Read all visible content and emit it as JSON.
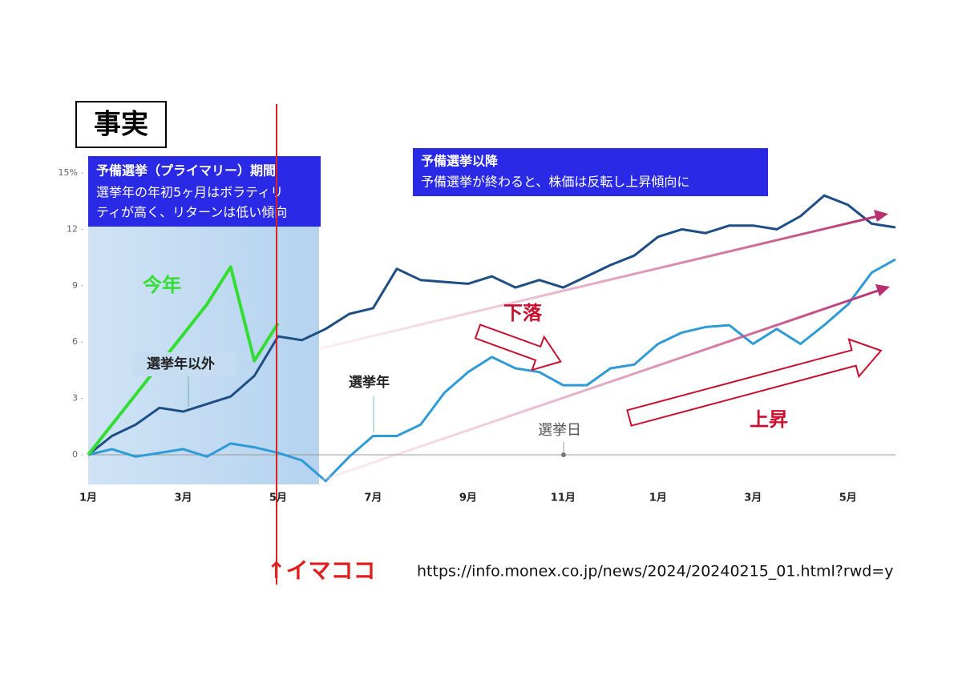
{
  "chart_data": {
    "type": "line",
    "badge": "事実",
    "box_primary": {
      "title": "予備選挙（プライマリー）期間",
      "lines": [
        "選挙年の年初5ヶ月はボラティリ",
        "ティが高く、リターンは低い傾向"
      ]
    },
    "box_after": {
      "title": "予備選挙以降",
      "lines": [
        "予備選挙が終わると、株価は反転し上昇傾向に"
      ]
    },
    "annotations": {
      "election_day": "選挙日",
      "fall": "下落",
      "rise": "上昇",
      "now": "↑イマココ",
      "source": "https://info.monex.co.jp/news/2024/20240215_01.html?rwd=y"
    },
    "categories": [
      "1月",
      null,
      null,
      null,
      "3月",
      null,
      null,
      null,
      "5月",
      null,
      null,
      null,
      "7月",
      null,
      null,
      null,
      "9月",
      null,
      null,
      null,
      "11月",
      null,
      null,
      null,
      "1月",
      null,
      null,
      null,
      "3月",
      null,
      null,
      null,
      "5月",
      null,
      null
    ],
    "series": [
      {
        "name": "選挙年以外",
        "color": "#1f4e85",
        "values": [
          0,
          1.0,
          1.6,
          2.5,
          2.3,
          2.7,
          3.1,
          4.2,
          6.3,
          6.1,
          6.7,
          7.5,
          7.8,
          9.9,
          9.3,
          9.2,
          9.1,
          9.5,
          8.9,
          9.3,
          8.9,
          9.5,
          10.1,
          10.6,
          11.6,
          12.0,
          11.8,
          12.2,
          12.2,
          12.0,
          12.7,
          13.8,
          13.3,
          12.3,
          12.1
        ]
      },
      {
        "name": "選挙年",
        "color": "#2e9bd6",
        "values": [
          0,
          0.3,
          -0.1,
          0.1,
          0.3,
          -0.1,
          0.6,
          0.4,
          0.1,
          -0.3,
          -1.4,
          -0.1,
          1.0,
          1.0,
          1.6,
          3.3,
          4.4,
          5.2,
          4.6,
          4.4,
          3.7,
          3.7,
          4.6,
          4.8,
          5.9,
          6.5,
          6.8,
          6.9,
          5.9,
          6.7,
          5.9,
          6.9,
          8.0,
          9.7,
          10.4
        ]
      },
      {
        "name": "今年",
        "color": "#33dd33",
        "values": [
          0,
          1.6,
          3.2,
          4.8,
          6.4,
          8.0,
          10.0,
          5.0,
          7.0,
          null,
          null,
          null,
          null,
          null,
          null,
          null,
          null,
          null,
          null,
          null,
          null,
          null,
          null,
          null,
          null,
          null,
          null,
          null,
          null,
          null,
          null,
          null,
          null,
          null,
          null
        ]
      }
    ],
    "ylim": [
      -1.6,
      15
    ],
    "yticks": [
      0,
      3,
      6,
      9,
      12,
      {
        "value": 15,
        "label": "15%"
      }
    ],
    "grid": false
  }
}
